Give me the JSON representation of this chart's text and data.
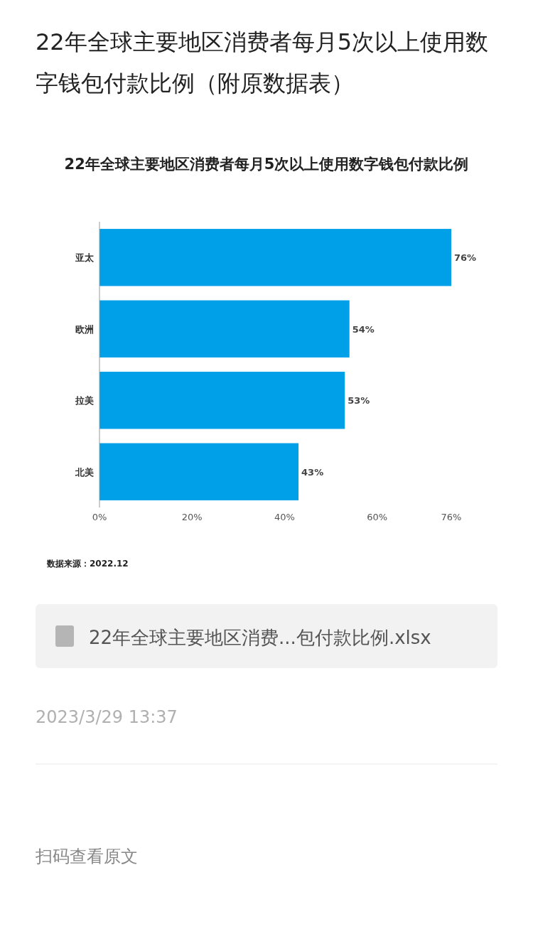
{
  "chart_data": {
    "type": "bar",
    "orientation": "horizontal",
    "title": "22年全球主要地区消费者每月5次以上使用数字钱包付款比例（附原数据表）",
    "subtitle": "22年全球主要地区消费者每月5次以上使用数字钱包付款比例",
    "categories": [
      "亚太",
      "欧洲",
      "拉美",
      "北美"
    ],
    "values": [
      76,
      54,
      53,
      43
    ],
    "value_labels": [
      "76%",
      "54%",
      "53%",
      "43%"
    ],
    "color": "#00a0e9",
    "xlim": [
      0,
      76
    ],
    "xticks": [
      {
        "value": 0,
        "label": "0%"
      },
      {
        "value": 20,
        "label": "20%"
      },
      {
        "value": 40,
        "label": "40%"
      },
      {
        "value": 60,
        "label": "60%"
      },
      {
        "value": 76,
        "label": "76%"
      }
    ],
    "annotations": [
      "数据来源：2022.12",
      "22年全球主要地区消费...包付款比例.xlsx",
      "2023/3/29 13:37",
      "扫码查看原文"
    ]
  }
}
